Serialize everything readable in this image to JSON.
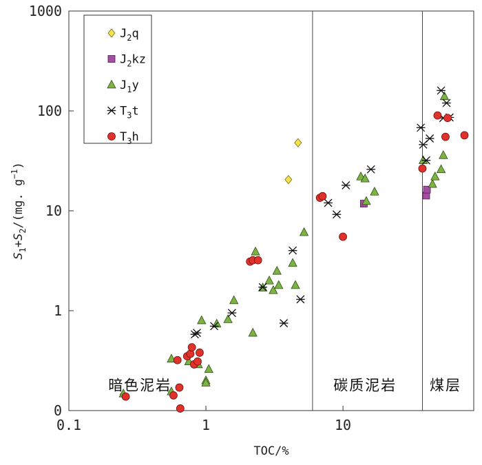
{
  "chart_data": {
    "type": "scatter",
    "xlabel": "TOC/%",
    "ylabel": "S1+S2/(mg.g−1)",
    "xscale": "log",
    "yscale": "log",
    "xlim": [
      0.1,
      90
    ],
    "ylim": [
      0.1,
      1000
    ],
    "x_ticks": [
      {
        "v": 0.1,
        "label": "0.1"
      },
      {
        "v": 1,
        "label": "1"
      },
      {
        "v": 10,
        "label": "10"
      }
    ],
    "y_ticks": [
      {
        "v": 0.1,
        "label": "0"
      },
      {
        "v": 1,
        "label": "1"
      },
      {
        "v": 10,
        "label": "10"
      },
      {
        "v": 100,
        "label": "100"
      },
      {
        "v": 1000,
        "label": "1000"
      }
    ],
    "dividers": [
      6,
      38
    ],
    "regions": [
      {
        "label": "暗色泥岩",
        "x": 0.33,
        "y": 0.16
      },
      {
        "label": "碳质泥岩",
        "x": 14.5,
        "y": 0.16
      },
      {
        "label": "煤层",
        "x": 56,
        "y": 0.16
      }
    ],
    "legend_position": "top-left",
    "series": [
      {
        "name": "J2q",
        "base": "J",
        "sub": "2",
        "suffix": "q",
        "marker": "diamond",
        "color": "#f5e14a",
        "points": [
          [
            0.25,
            0.145
          ],
          [
            4.0,
            20.5
          ],
          [
            4.7,
            48
          ]
        ]
      },
      {
        "name": "J2kz",
        "base": "J",
        "sub": "2",
        "suffix": "kz",
        "marker": "square",
        "color": "#a64ca6",
        "points": [
          [
            14.2,
            11.8
          ],
          [
            40.5,
            14.2
          ],
          [
            41,
            16.3
          ]
        ]
      },
      {
        "name": "J1y",
        "base": "J",
        "sub": "1",
        "suffix": "y",
        "marker": "triangle",
        "color": "#7cb342",
        "points": [
          [
            0.25,
            0.148
          ],
          [
            0.56,
            0.155
          ],
          [
            0.56,
            0.33
          ],
          [
            0.75,
            0.31
          ],
          [
            0.88,
            0.29
          ],
          [
            0.93,
            0.8
          ],
          [
            1.0,
            0.2
          ],
          [
            1.0,
            0.19
          ],
          [
            1.05,
            0.26
          ],
          [
            1.2,
            0.74
          ],
          [
            1.45,
            0.82
          ],
          [
            1.6,
            1.27
          ],
          [
            2.2,
            0.6
          ],
          [
            2.3,
            3.9
          ],
          [
            2.6,
            1.7
          ],
          [
            2.9,
            2.0
          ],
          [
            3.1,
            1.6
          ],
          [
            3.3,
            2.5
          ],
          [
            3.4,
            1.8
          ],
          [
            4.3,
            3.0
          ],
          [
            4.5,
            1.8
          ],
          [
            5.2,
            6.1
          ],
          [
            13.5,
            22
          ],
          [
            14.5,
            21
          ],
          [
            14.8,
            12.5
          ],
          [
            17,
            15.5
          ],
          [
            38.5,
            32
          ],
          [
            45,
            18.5
          ],
          [
            47,
            22
          ],
          [
            52,
            26
          ],
          [
            54,
            36
          ],
          [
            55,
            140
          ]
        ]
      },
      {
        "name": "T3t",
        "base": "T",
        "sub": "3",
        "suffix": "t",
        "marker": "asterisk",
        "color": "#111111",
        "points": [
          [
            0.83,
            0.58
          ],
          [
            0.86,
            0.6
          ],
          [
            1.15,
            0.7
          ],
          [
            1.55,
            0.95
          ],
          [
            2.6,
            1.72
          ],
          [
            3.7,
            0.75
          ],
          [
            4.3,
            4.0
          ],
          [
            4.9,
            1.3
          ],
          [
            7.8,
            12
          ],
          [
            9,
            9.2
          ],
          [
            10.5,
            18
          ],
          [
            16,
            26
          ],
          [
            37,
            68
          ],
          [
            38.5,
            46
          ],
          [
            40.5,
            32
          ],
          [
            43,
            53
          ],
          [
            52,
            160
          ],
          [
            54,
            85
          ],
          [
            57,
            120
          ],
          [
            60,
            86
          ]
        ]
      },
      {
        "name": "T3h",
        "base": "T",
        "sub": "3",
        "suffix": "h",
        "marker": "circle",
        "color": "#e0322b",
        "points": [
          [
            0.26,
            0.138
          ],
          [
            0.58,
            0.142
          ],
          [
            0.62,
            0.32
          ],
          [
            0.64,
            0.17
          ],
          [
            0.65,
            0.105
          ],
          [
            0.73,
            0.35
          ],
          [
            0.77,
            0.37
          ],
          [
            0.79,
            0.43
          ],
          [
            0.82,
            0.29
          ],
          [
            0.87,
            0.31
          ],
          [
            0.9,
            0.38
          ],
          [
            2.1,
            3.1
          ],
          [
            2.2,
            3.2
          ],
          [
            2.4,
            3.2
          ],
          [
            6.8,
            13.5
          ],
          [
            7.1,
            14
          ],
          [
            10,
            5.5
          ],
          [
            38,
            26.5
          ],
          [
            49,
            90
          ],
          [
            56,
            55
          ],
          [
            58,
            85
          ],
          [
            77,
            57
          ]
        ]
      }
    ]
  }
}
